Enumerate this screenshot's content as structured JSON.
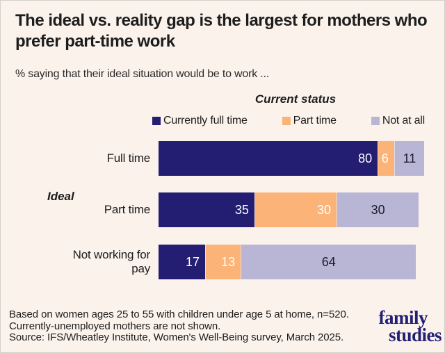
{
  "header": {
    "title": "The ideal vs. reality gap is the largest for mothers who prefer part-time work",
    "subtitle": "% saying that their ideal situation would be to work ..."
  },
  "chart_data": {
    "type": "bar",
    "orientation": "horizontal",
    "stacked": true,
    "title": "The ideal vs. reality gap is the largest for mothers who prefer part-time work",
    "subtitle": "% saying that their ideal situation would be to work ...",
    "legend_title": "Current status",
    "legend_position": "top",
    "ylabel": "Ideal",
    "xlim": [
      0,
      100
    ],
    "grid": false,
    "value_unit": "%",
    "categories": [
      "Full time",
      "Part time",
      "Not working for pay"
    ],
    "series": [
      {
        "name": "Currently full time",
        "color": "#241e73",
        "values": [
          80,
          35,
          17
        ]
      },
      {
        "name": "Part time",
        "color": "#fcb377",
        "values": [
          6,
          30,
          13
        ]
      },
      {
        "name": "Not at all",
        "color": "#b9b6d5",
        "values": [
          11,
          30,
          64
        ]
      }
    ]
  },
  "footer": {
    "notes": [
      "Based on women ages 25 to 55 with children under age 5 at home, n=520.",
      "Currently-unemployed mothers are not shown.",
      "Source: IFS/Wheatley Institute, Women's Well-Being survey, March 2025."
    ],
    "logo": {
      "line1": "family",
      "line2": "studies"
    }
  },
  "colors": {
    "background": "#fbf2ec",
    "navy": "#241e73",
    "orange": "#fcb377",
    "lavender": "#b9b6d5",
    "logo_navy": "#232074"
  }
}
